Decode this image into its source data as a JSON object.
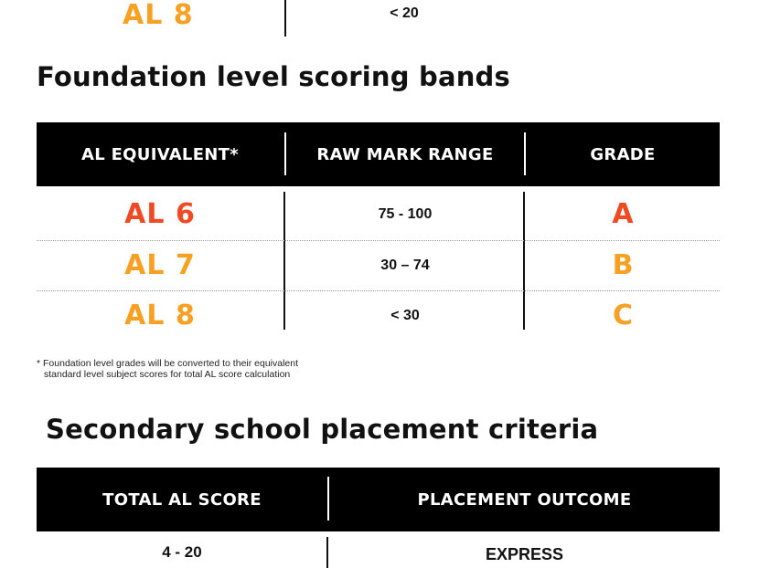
{
  "colors": {
    "orange": "#F7A021",
    "red_orange": "#EF4A23",
    "header_bg": "#000000"
  },
  "top_partial_row": {
    "al": "AL 8",
    "range": "< 20"
  },
  "foundation": {
    "title": "Foundation level scoring bands",
    "headers": [
      "AL EQUIVALENT*",
      "RAW MARK RANGE",
      "GRADE"
    ],
    "rows": [
      {
        "al": "AL 6",
        "range": "75 - 100",
        "grade": "A",
        "color": "#EF4A23"
      },
      {
        "al": "AL 7",
        "range": "30 – 74",
        "grade": "B",
        "color": "#F7A021"
      },
      {
        "al": "AL 8",
        "range": "< 30",
        "grade": "C",
        "color": "#F7A021"
      }
    ],
    "footnote": {
      "marker": "*",
      "line1": "Foundation level grades will be converted to their equivalent",
      "line2": "standard level subject scores for total AL score calculation"
    }
  },
  "placement": {
    "title": "Secondary school placement criteria",
    "headers": [
      "TOTAL AL SCORE",
      "PLACEMENT OUTCOME"
    ],
    "rows": [
      {
        "score": "4 - 20",
        "outcome": "EXPRESS"
      }
    ]
  }
}
